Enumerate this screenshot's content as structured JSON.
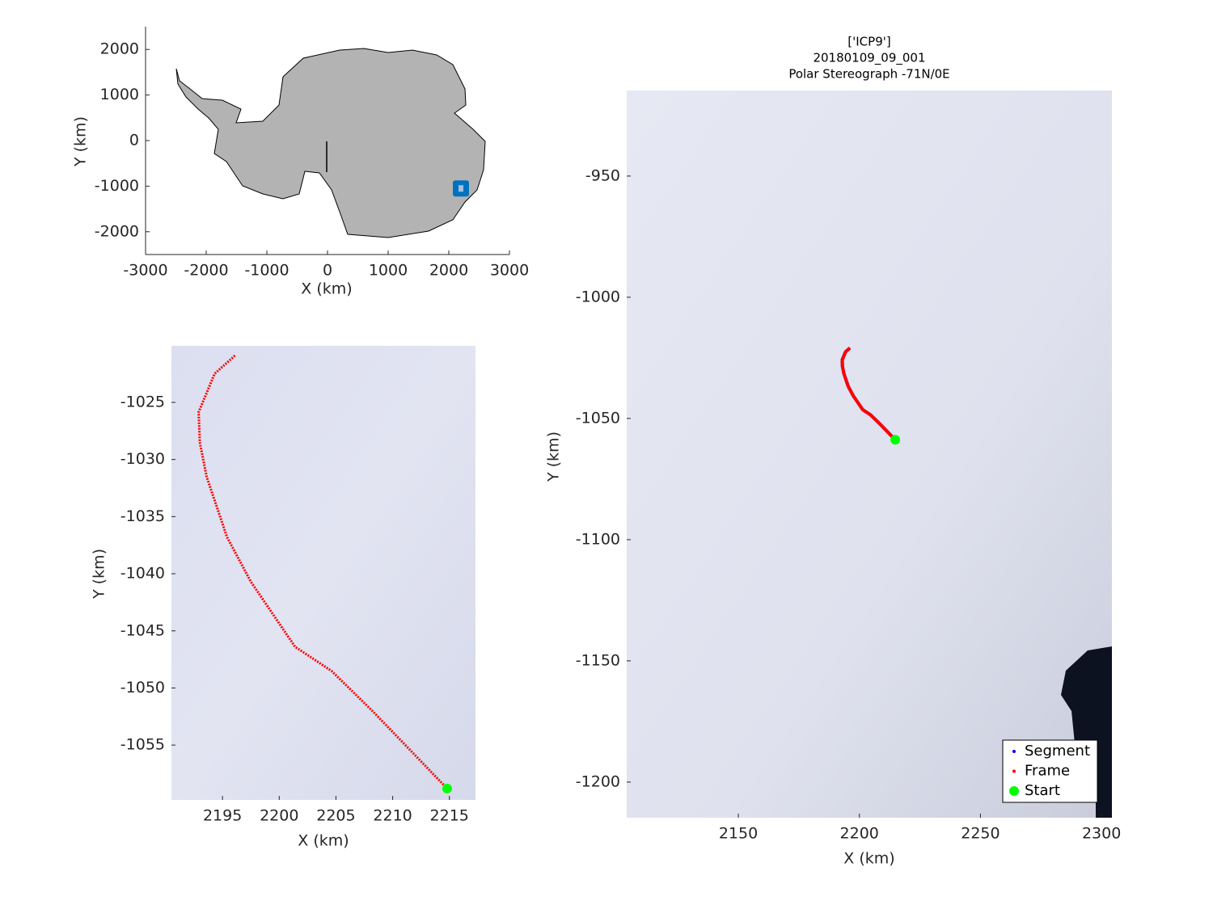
{
  "chart_data": [
    {
      "type": "map",
      "xlabel": "X (km)",
      "ylabel": "Y (km)",
      "xlim": [
        -3000,
        3000
      ],
      "ylim": [
        -2500,
        2500
      ],
      "xticks": [
        -3000,
        -2000,
        -1000,
        0,
        1000,
        2000,
        3000
      ],
      "yticks": [
        -2000,
        -1000,
        0,
        1000,
        2000
      ],
      "series": [
        {
          "color": "#0072bd",
          "marker": "square",
          "x": [
            2200
          ],
          "y": [
            -1050
          ]
        }
      ]
    },
    {
      "type": "line",
      "xlabel": "X (km)",
      "ylabel": "Y (km)",
      "xlim": [
        2190.5,
        2217.3
      ],
      "ylim": [
        -1059.8,
        -1020.05
      ],
      "xticks": [
        2195,
        2200,
        2205,
        2210,
        2215
      ],
      "yticks": [
        -1055,
        -1050,
        -1045,
        -1040,
        -1035,
        -1030,
        -1025
      ],
      "series": [
        {
          "color": "#ff0000",
          "marker": "point",
          "x": [
            2196.1,
            2194.3,
            2192.9,
            2193.0,
            2193.6,
            2195.4,
            2197.5,
            2201.4,
            2204.6,
            2208.2,
            2211.7,
            2214.8
          ],
          "y": [
            -1020.9,
            -1022.5,
            -1025.85,
            -1028.5,
            -1031.5,
            -1036.8,
            -1040.7,
            -1046.4,
            -1048.5,
            -1052.0,
            -1055.6,
            -1058.8
          ]
        },
        {
          "color": "#00ff00",
          "marker": "circle",
          "x": [
            2214.8
          ],
          "y": [
            -1058.8
          ]
        }
      ]
    },
    {
      "type": "line",
      "title": [
        "['ICP9']",
        "20180109_09_001",
        "Polar Stereograph -71N/0E"
      ],
      "xlabel": "X (km)",
      "ylabel": "Y (km)",
      "xlim": [
        2103.9,
        2304.3
      ],
      "ylim": [
        -1214.7,
        -914.7
      ],
      "xticks": [
        2150,
        2200,
        2250,
        2300
      ],
      "yticks": [
        -1200,
        -1150,
        -1100,
        -1050,
        -1000,
        -950
      ],
      "legend": "lower right",
      "series": [
        {
          "name": "Segment",
          "color": "#0000ff",
          "marker": "point",
          "x": [
            2196.1,
            2194.3,
            2192.9,
            2193.0,
            2193.6,
            2195.4,
            2197.5,
            2201.4,
            2204.6,
            2208.2,
            2211.7,
            2214.8
          ],
          "y": [
            -1020.9,
            -1022.5,
            -1025.85,
            -1028.5,
            -1031.5,
            -1036.8,
            -1040.7,
            -1046.4,
            -1048.5,
            -1052.0,
            -1055.6,
            -1058.8
          ]
        },
        {
          "name": "Frame",
          "color": "#ff0000",
          "marker": "point",
          "x": [
            2196.1,
            2194.3,
            2192.9,
            2193.0,
            2193.6,
            2195.4,
            2197.5,
            2201.4,
            2204.6,
            2208.2,
            2211.7,
            2214.8
          ],
          "y": [
            -1020.9,
            -1022.5,
            -1025.85,
            -1028.5,
            -1031.5,
            -1036.8,
            -1040.7,
            -1046.4,
            -1048.5,
            -1052.0,
            -1055.6,
            -1058.8
          ]
        },
        {
          "name": "Start",
          "color": "#00ff00",
          "marker": "circle",
          "x": [
            2214.8
          ],
          "y": [
            -1058.8
          ]
        }
      ]
    }
  ]
}
